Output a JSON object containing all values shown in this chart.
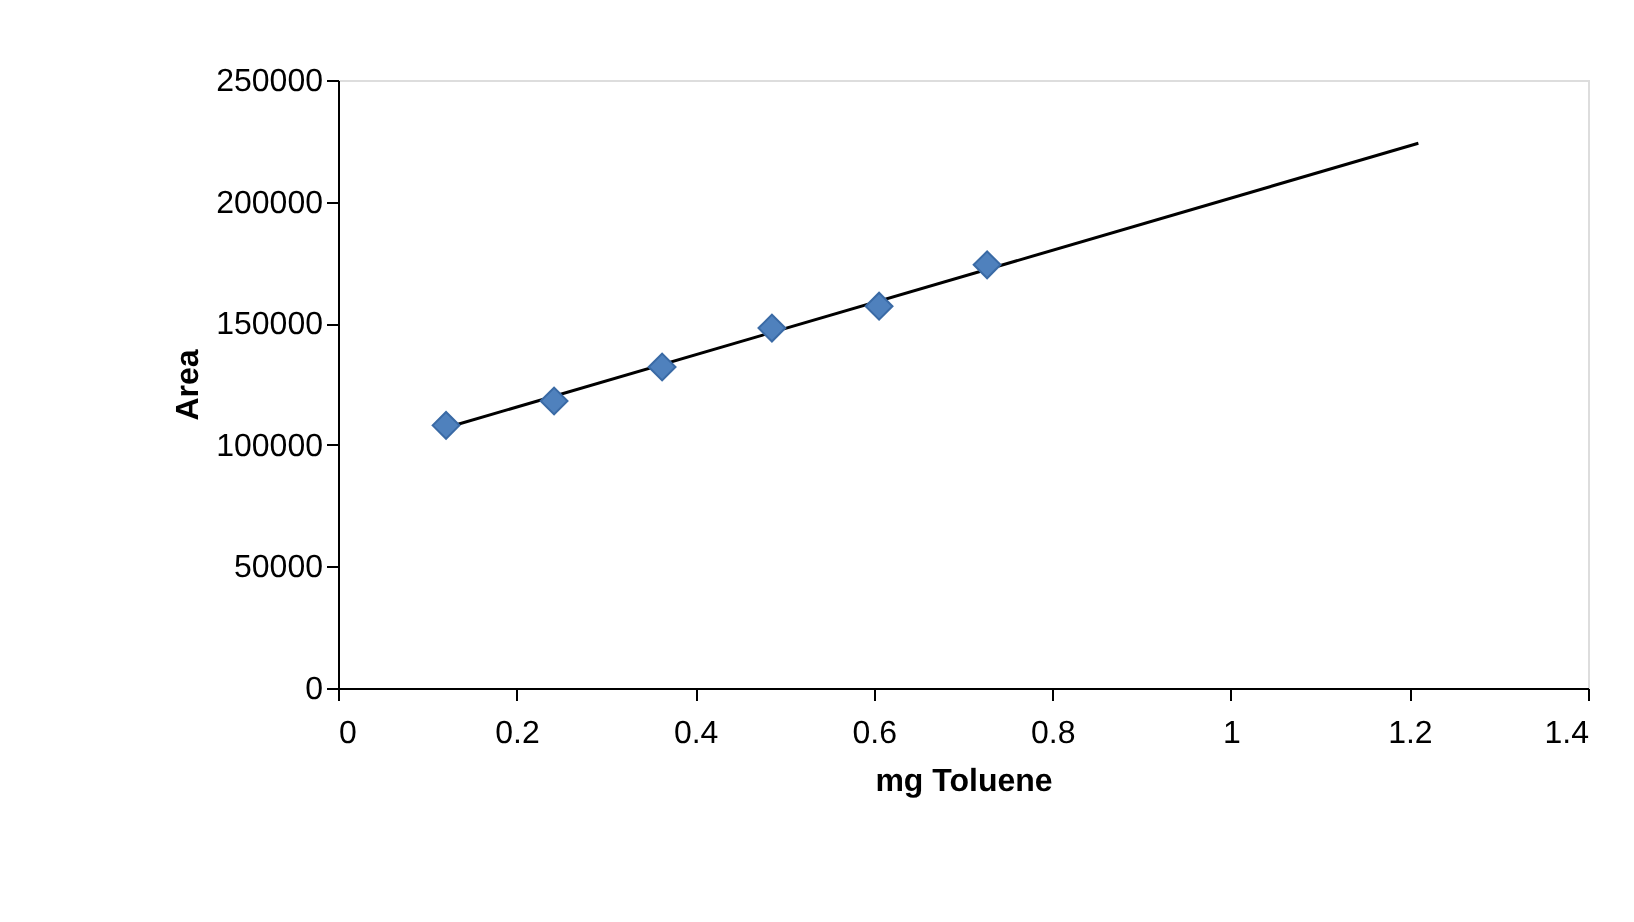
{
  "chart_data": {
    "type": "scatter",
    "xlabel": "mg Toluene",
    "ylabel": "Area",
    "series": [
      {
        "color": "#4f81bd",
        "marker": "diamond",
        "x": [
          0.121,
          0.242,
          0.363,
          0.486,
          0.606,
          0.727
        ],
        "values": [
          108000,
          118000,
          132000,
          148000,
          157000,
          174000
        ]
      },
      {
        "type": "line",
        "color": "#000000",
        "x": [
          0.121,
          1.21
        ],
        "values": [
          107000,
          224000
        ]
      }
    ],
    "xlim": [
      0,
      1.4
    ],
    "xticks": [
      0,
      0.2,
      0.4,
      0.6,
      0.8,
      1,
      1.2,
      1.4
    ],
    "ylim": [
      0,
      250000
    ],
    "yticks": [
      0,
      50000,
      100000,
      150000,
      200000,
      250000
    ]
  }
}
